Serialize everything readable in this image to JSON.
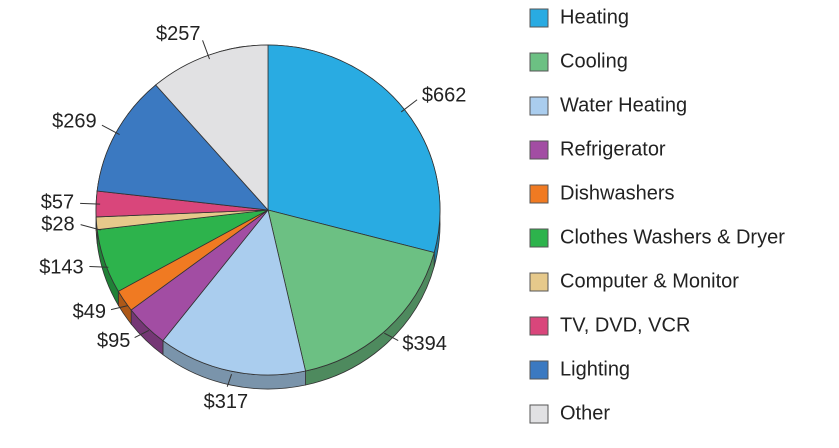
{
  "chart_data": {
    "type": "pie",
    "categories": [
      "Heating",
      "Cooling",
      "Water Heating",
      "Refrigerator",
      "Dishwashers",
      "Clothes Washers & Dryer",
      "Computer & Monitor",
      "TV, DVD, VCR",
      "Lighting",
      "Other"
    ],
    "values": [
      662,
      394,
      317,
      95,
      49,
      143,
      28,
      57,
      269,
      257
    ],
    "value_labels": [
      "$662",
      "$394",
      "$317",
      "$95",
      "$49",
      "$143",
      "$28",
      "$57",
      "$269",
      "$257"
    ],
    "colors": [
      "#29abe2",
      "#6cc083",
      "#aacdee",
      "#a24da3",
      "#f07a22",
      "#2db34c",
      "#e6c98b",
      "#d9467b",
      "#3b79c1",
      "#e1e1e3"
    ],
    "legend": "right"
  }
}
